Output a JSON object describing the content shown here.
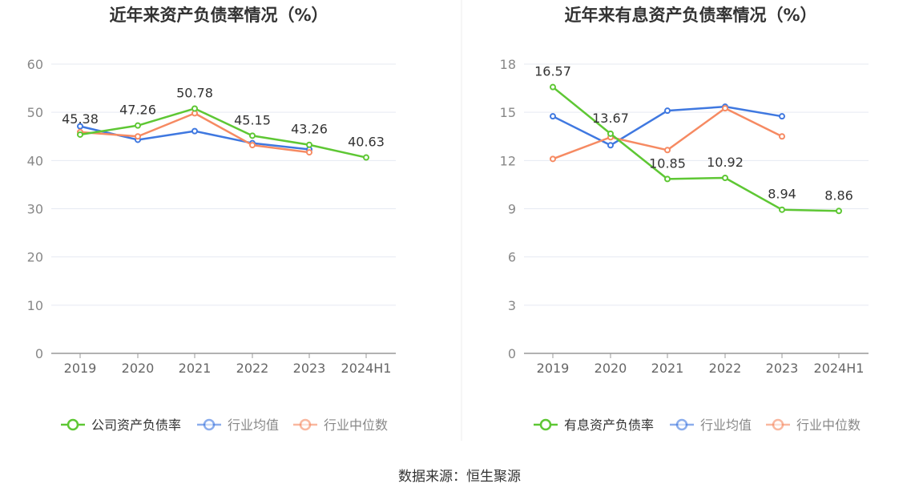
{
  "source_text": "数据来源：恒生聚源",
  "chart_data": [
    {
      "type": "line",
      "title": "近年来资产负债率情况（%）",
      "xlabel": "",
      "ylabel": "",
      "categories": [
        "2019",
        "2020",
        "2021",
        "2022",
        "2023",
        "2024H1"
      ],
      "ylim": [
        0,
        60
      ],
      "yticks": [
        "0",
        "10",
        "20",
        "30",
        "40",
        "50",
        "60"
      ],
      "grid": true,
      "legend_position": "bottom",
      "series": [
        {
          "name": "公司资产负债率",
          "color": "#5ec734",
          "values": [
            45.38,
            47.26,
            50.78,
            45.15,
            43.26,
            40.63
          ],
          "labels": [
            "45.38",
            "47.26",
            "50.78",
            "45.15",
            "43.26",
            "40.63"
          ]
        },
        {
          "name": "行业均值",
          "color": "#3f78e0",
          "values": [
            47.1,
            44.3,
            46.1,
            43.6,
            42.3,
            null
          ]
        },
        {
          "name": "行业中位数",
          "color": "#f68a62",
          "values": [
            45.9,
            45.0,
            49.8,
            43.2,
            41.7,
            null
          ]
        }
      ]
    },
    {
      "type": "line",
      "title": "近年来有息资产负债率情况（%）",
      "xlabel": "",
      "ylabel": "",
      "categories": [
        "2019",
        "2020",
        "2021",
        "2022",
        "2023",
        "2024H1"
      ],
      "ylim": [
        0,
        18
      ],
      "yticks": [
        "0",
        "3",
        "6",
        "9",
        "12",
        "15",
        "18"
      ],
      "grid": true,
      "legend_position": "bottom",
      "series": [
        {
          "name": "有息资产负债率",
          "color": "#5ec734",
          "values": [
            16.57,
            13.67,
            10.85,
            10.92,
            8.94,
            8.86
          ],
          "labels": [
            "16.57",
            "13.67",
            "10.85",
            "10.92",
            "8.94",
            "8.86"
          ]
        },
        {
          "name": "行业均值",
          "color": "#3f78e0",
          "values": [
            14.75,
            12.95,
            15.1,
            15.35,
            14.75,
            null
          ]
        },
        {
          "name": "行业中位数",
          "color": "#f68a62",
          "values": [
            12.1,
            13.45,
            12.65,
            15.25,
            13.5,
            null
          ]
        }
      ]
    }
  ]
}
